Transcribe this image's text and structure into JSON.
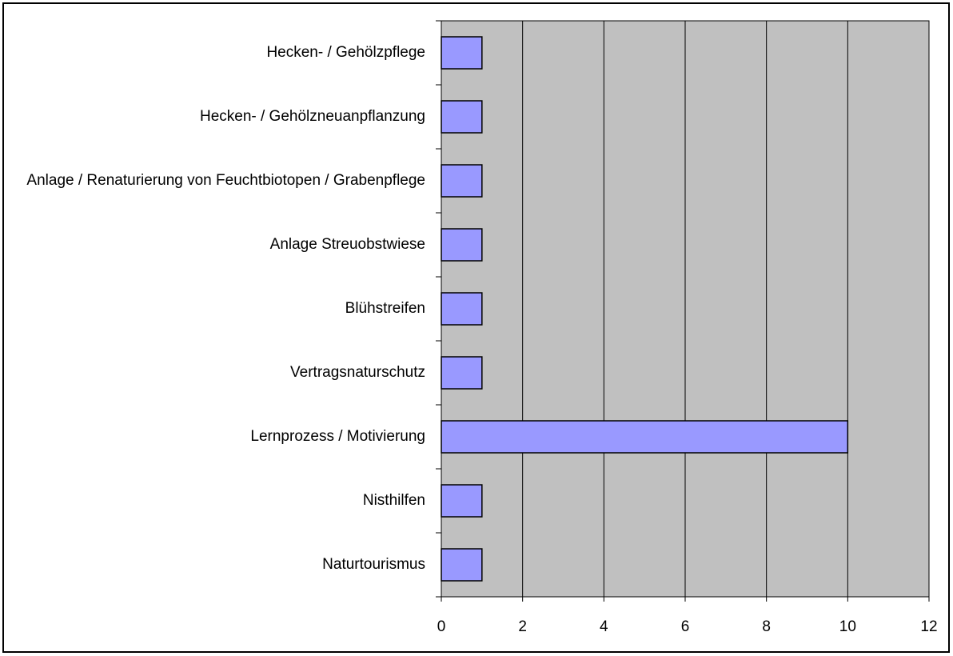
{
  "chart_data": {
    "type": "barh",
    "categories": [
      "Hecken- / Gehölzpflege",
      "Hecken- / Gehölzneuanpflanzung",
      "Anlage / Renaturierung von Feuchtbiotopen / Grabenpflege",
      "Anlage Streuobstwiese",
      "Blühstreifen",
      "Vertragsnaturschutz",
      "Lernprozess / Motivierung",
      "Nisthilfen",
      "Naturtourismus"
    ],
    "values": [
      1,
      1,
      1,
      1,
      1,
      1,
      10,
      1,
      1
    ],
    "color": "#9999ff",
    "plot_background": "#c0c0c0",
    "xlim": [
      0,
      12
    ],
    "xticks": [
      0,
      2,
      4,
      6,
      8,
      10,
      12
    ],
    "grid": true
  }
}
